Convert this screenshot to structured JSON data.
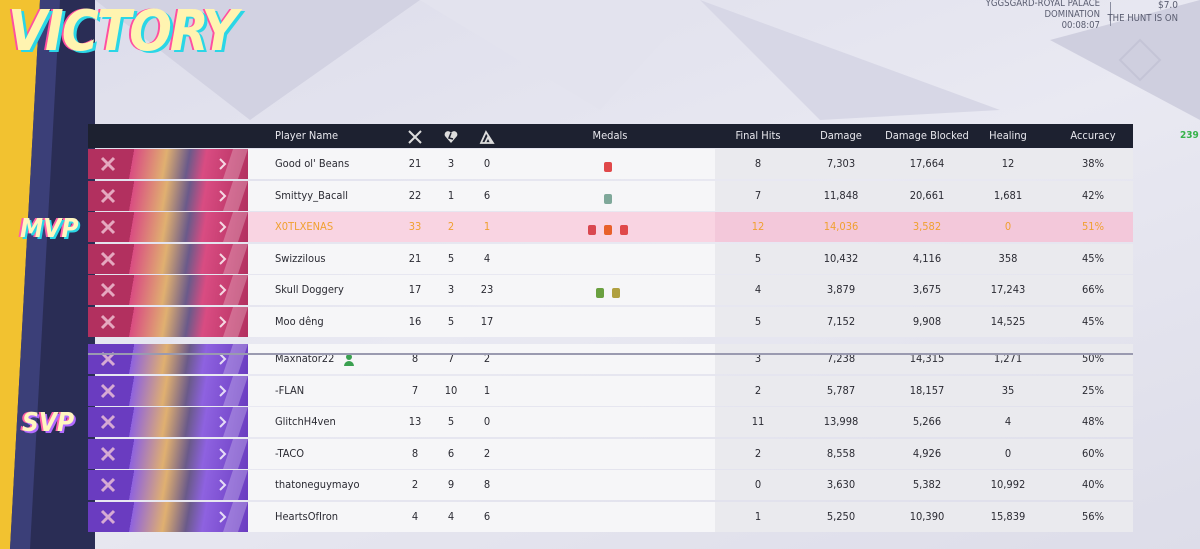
{
  "header": {
    "title": "VICTORY",
    "map": "YGGSGARD-ROYAL PALACE",
    "mode": "DOMINATION",
    "time": "00:08:07",
    "price": "$7.0",
    "event": "THE HUNT IS ON",
    "side_count": "239"
  },
  "columns": {
    "player": "Player Name",
    "medals": "Medals",
    "final_hits": "Final Hits",
    "damage": "Damage",
    "blocked": "Damage Blocked",
    "healing": "Healing",
    "accuracy": "Accuracy"
  },
  "teams": [
    {
      "badge": "MVP",
      "rows": [
        [
          "Good ol' Beans",
          "21",
          "3",
          "0",
          "8",
          "7,303",
          "17,664",
          "12",
          "38%"
        ],
        [
          "Smittyy_Bacall",
          "22",
          "1",
          "6",
          "7",
          "11,848",
          "20,661",
          "1,681",
          "42%"
        ],
        [
          "X0TLXENAS",
          "33",
          "2",
          "1",
          "12",
          "14,036",
          "3,582",
          "0",
          "51%"
        ],
        [
          "Swizzilous",
          "21",
          "5",
          "4",
          "5",
          "10,432",
          "4,116",
          "358",
          "45%"
        ],
        [
          "Skull Doggery",
          "17",
          "3",
          "23",
          "4",
          "3,879",
          "3,675",
          "17,243",
          "66%"
        ],
        [
          "Moo dêng",
          "16",
          "5",
          "17",
          "5",
          "7,152",
          "9,908",
          "14,525",
          "45%"
        ]
      ]
    },
    {
      "badge": "SVP",
      "rows": [
        [
          "Maxnator22",
          "8",
          "7",
          "2",
          "3",
          "7,238",
          "14,315",
          "1,271",
          "50%"
        ],
        [
          "-FLAN",
          "7",
          "10",
          "1",
          "2",
          "5,787",
          "18,157",
          "35",
          "25%"
        ],
        [
          "GlitchH4ven",
          "13",
          "5",
          "0",
          "11",
          "13,998",
          "5,266",
          "4",
          "48%"
        ],
        [
          "-TACO",
          "8",
          "6",
          "2",
          "2",
          "8,558",
          "4,926",
          "0",
          "60%"
        ],
        [
          "thatoneguymayo",
          "2",
          "9",
          "8",
          "0",
          "3,630",
          "5,382",
          "10,992",
          "40%"
        ],
        [
          "HeartsOfIron",
          "4",
          "4",
          "6",
          "1",
          "5,250",
          "10,390",
          "15,839",
          "56%"
        ]
      ]
    }
  ]
}
